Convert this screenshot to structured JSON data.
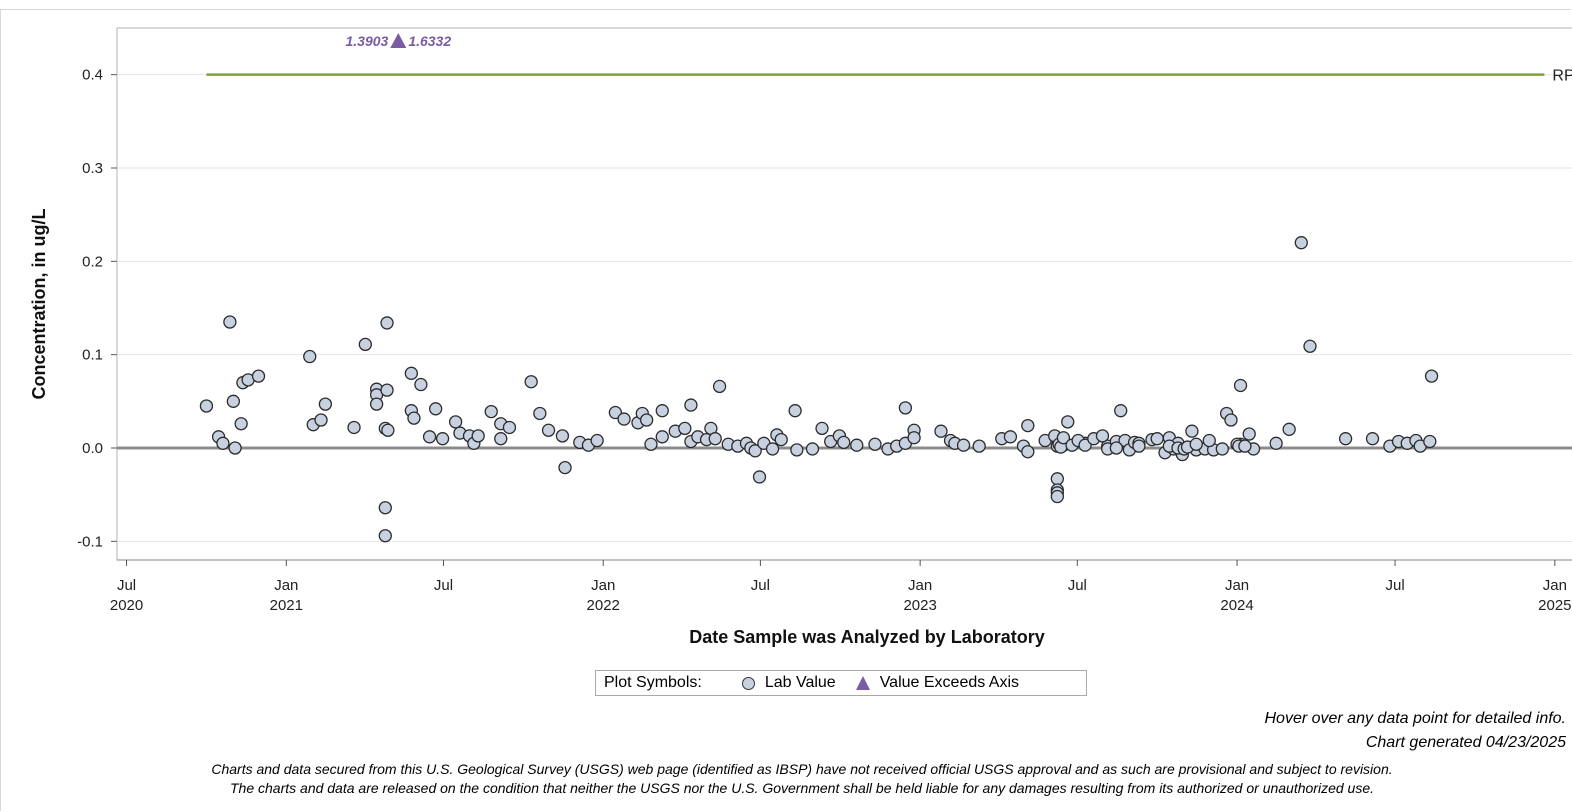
{
  "chart_data": {
    "type": "scatter",
    "title": "",
    "ylabel": "Concentration, in ug/L",
    "xlabel": "Date Sample was Analyzed by Laboratory",
    "ylim": [
      -0.12,
      0.45
    ],
    "xlim": [
      "2020-06-20",
      "2025-01-15"
    ],
    "y_ticks": [
      {
        "value": 0.4,
        "label": "0.4"
      },
      {
        "value": 0.3,
        "label": "0.3"
      },
      {
        "value": 0.2,
        "label": "0.2"
      },
      {
        "value": 0.1,
        "label": "0.1"
      },
      {
        "value": 0.0,
        "label": "0.0"
      },
      {
        "value": -0.1,
        "label": "-0.1"
      }
    ],
    "x_ticks": [
      {
        "date": "2020-07-01",
        "line1": "Jul",
        "line2": "2020"
      },
      {
        "date": "2021-01-01",
        "line1": "Jan",
        "line2": "2021"
      },
      {
        "date": "2021-07-01",
        "line1": "Jul",
        "line2": ""
      },
      {
        "date": "2022-01-01",
        "line1": "Jan",
        "line2": "2022"
      },
      {
        "date": "2022-07-01",
        "line1": "Jul",
        "line2": ""
      },
      {
        "date": "2023-01-01",
        "line1": "Jan",
        "line2": "2023"
      },
      {
        "date": "2023-07-01",
        "line1": "Jul",
        "line2": ""
      },
      {
        "date": "2024-01-01",
        "line1": "Jan",
        "line2": "2024"
      },
      {
        "date": "2024-07-01",
        "line1": "Jul",
        "line2": ""
      },
      {
        "date": "2025-01-01",
        "line1": "Jan",
        "line2": "2025"
      }
    ],
    "grid": "horizontal",
    "reference_lines": [
      {
        "label": "RPT Level",
        "y": 0.4,
        "x_start": "2020-10-01",
        "x_end": "2024-12-20",
        "color": "#7da13c"
      },
      {
        "label": "",
        "y": 0.0,
        "color": "#8c8c8c"
      }
    ],
    "exceeds_axis": [
      {
        "date": "2021-05-10",
        "values": [
          "1.3903",
          "1.6332"
        ],
        "color": "#7a5ca5"
      }
    ],
    "series": [
      {
        "name": "Lab Value",
        "marker": "circle",
        "color": "#c7d1e0",
        "points": [
          [
            "2020-10-01",
            0.045
          ],
          [
            "2020-10-15",
            0.012
          ],
          [
            "2020-10-20",
            0.005
          ],
          [
            "2020-10-28",
            0.135
          ],
          [
            "2020-11-01",
            0.05
          ],
          [
            "2020-11-03",
            0.0
          ],
          [
            "2020-11-10",
            0.026
          ],
          [
            "2020-11-12",
            0.07
          ],
          [
            "2020-11-18",
            0.073
          ],
          [
            "2020-11-30",
            0.077
          ],
          [
            "2021-01-28",
            0.098
          ],
          [
            "2021-02-01",
            0.025
          ],
          [
            "2021-02-10",
            0.03
          ],
          [
            "2021-02-15",
            0.047
          ],
          [
            "2021-03-20",
            0.022
          ],
          [
            "2021-04-02",
            0.111
          ],
          [
            "2021-04-15",
            0.063
          ],
          [
            "2021-04-15",
            0.057
          ],
          [
            "2021-04-15",
            0.047
          ],
          [
            "2021-04-27",
            0.134
          ],
          [
            "2021-04-25",
            0.021
          ],
          [
            "2021-04-27",
            0.062
          ],
          [
            "2021-04-28",
            0.019
          ],
          [
            "2021-04-25",
            -0.064
          ],
          [
            "2021-04-25",
            -0.094
          ],
          [
            "2021-05-25",
            0.08
          ],
          [
            "2021-05-25",
            0.04
          ],
          [
            "2021-05-28",
            0.032
          ],
          [
            "2021-06-05",
            0.068
          ],
          [
            "2021-06-15",
            0.012
          ],
          [
            "2021-06-22",
            0.042
          ],
          [
            "2021-06-30",
            0.01
          ],
          [
            "2021-07-15",
            0.028
          ],
          [
            "2021-07-20",
            0.016
          ],
          [
            "2021-07-31",
            0.013
          ],
          [
            "2021-08-05",
            0.005
          ],
          [
            "2021-08-10",
            0.013
          ],
          [
            "2021-08-25",
            0.039
          ],
          [
            "2021-09-05",
            0.026
          ],
          [
            "2021-09-05",
            0.01
          ],
          [
            "2021-09-15",
            0.022
          ],
          [
            "2021-10-10",
            0.071
          ],
          [
            "2021-10-20",
            0.037
          ],
          [
            "2021-10-30",
            0.019
          ],
          [
            "2021-11-15",
            0.013
          ],
          [
            "2021-11-18",
            -0.021
          ],
          [
            "2021-12-05",
            0.006
          ],
          [
            "2021-12-15",
            0.003
          ],
          [
            "2021-12-25",
            0.008
          ],
          [
            "2022-01-15",
            0.038
          ],
          [
            "2022-01-25",
            0.031
          ],
          [
            "2022-02-10",
            0.027
          ],
          [
            "2022-02-15",
            0.037
          ],
          [
            "2022-02-20",
            0.03
          ],
          [
            "2022-02-25",
            0.004
          ],
          [
            "2022-03-10",
            0.04
          ],
          [
            "2022-03-10",
            0.012
          ],
          [
            "2022-03-25",
            0.018
          ],
          [
            "2022-04-05",
            0.021
          ],
          [
            "2022-04-12",
            0.046
          ],
          [
            "2022-04-12",
            0.007
          ],
          [
            "2022-04-20",
            0.012
          ],
          [
            "2022-04-30",
            0.009
          ],
          [
            "2022-05-05",
            0.021
          ],
          [
            "2022-05-10",
            0.01
          ],
          [
            "2022-05-15",
            0.066
          ],
          [
            "2022-05-25",
            0.004
          ],
          [
            "2022-06-05",
            0.002
          ],
          [
            "2022-06-15",
            0.005
          ],
          [
            "2022-06-20",
            0.0
          ],
          [
            "2022-06-25",
            -0.003
          ],
          [
            "2022-06-30",
            -0.031
          ],
          [
            "2022-07-05",
            0.005
          ],
          [
            "2022-07-15",
            -0.001
          ],
          [
            "2022-07-20",
            0.014
          ],
          [
            "2022-07-25",
            0.009
          ],
          [
            "2022-08-10",
            0.04
          ],
          [
            "2022-08-12",
            -0.002
          ],
          [
            "2022-08-30",
            -0.001
          ],
          [
            "2022-09-10",
            0.021
          ],
          [
            "2022-09-20",
            0.007
          ],
          [
            "2022-09-30",
            0.013
          ],
          [
            "2022-10-05",
            0.006
          ],
          [
            "2022-10-20",
            0.003
          ],
          [
            "2022-11-10",
            0.004
          ],
          [
            "2022-11-25",
            -0.001
          ],
          [
            "2022-12-05",
            0.002
          ],
          [
            "2022-12-15",
            0.005
          ],
          [
            "2022-12-15",
            0.043
          ],
          [
            "2022-12-25",
            0.019
          ],
          [
            "2022-12-25",
            0.011
          ],
          [
            "2023-01-25",
            0.018
          ],
          [
            "2023-02-05",
            0.008
          ],
          [
            "2023-02-10",
            0.005
          ],
          [
            "2023-02-20",
            0.003
          ],
          [
            "2023-03-10",
            0.002
          ],
          [
            "2023-04-05",
            0.01
          ],
          [
            "2023-04-15",
            0.012
          ],
          [
            "2023-04-30",
            0.002
          ],
          [
            "2023-05-05",
            -0.004
          ],
          [
            "2023-05-05",
            0.024
          ],
          [
            "2023-05-25",
            0.008
          ],
          [
            "2023-06-10",
            0.004
          ],
          [
            "2023-06-15",
            0.003
          ],
          [
            "2023-07-10",
            0.005
          ],
          [
            "2023-08-05",
            0.002
          ],
          [
            "2023-08-15",
            0.007
          ],
          [
            "2023-08-20",
            0.04
          ],
          [
            "2023-08-25",
            0.008
          ],
          [
            "2023-08-30",
            -0.002
          ],
          [
            "2023-09-05",
            0.006
          ],
          [
            "2023-09-10",
            0.005
          ],
          [
            "2023-09-25",
            0.009
          ],
          [
            "2023-10-01",
            0.01
          ],
          [
            "2023-10-10",
            -0.005
          ],
          [
            "2023-10-15",
            0.011
          ],
          [
            "2023-10-20",
            -0.001
          ],
          [
            "2023-10-25",
            0.005
          ],
          [
            "2023-10-30",
            -0.007
          ],
          [
            "2023-11-10",
            0.018
          ],
          [
            "2023-11-15",
            -0.002
          ],
          [
            "2023-11-25",
            -0.001
          ],
          [
            "2023-12-05",
            -0.002
          ],
          [
            "2023-12-15",
            -0.001
          ],
          [
            "2024-01-05",
            0.067
          ],
          [
            "2024-01-05",
            0.004
          ],
          [
            "2024-01-15",
            0.015
          ],
          [
            "2024-01-20",
            -0.001
          ],
          [
            "2024-02-15",
            0.005
          ],
          [
            "2024-03-01",
            0.02
          ],
          [
            "2024-03-15",
            0.22
          ],
          [
            "2024-03-25",
            0.109
          ],
          [
            "2024-05-05",
            0.01
          ],
          [
            "2024-06-05",
            0.01
          ],
          [
            "2024-06-25",
            0.002
          ],
          [
            "2024-07-05",
            0.007
          ],
          [
            "2024-07-15",
            0.005
          ],
          [
            "2024-07-25",
            0.008
          ],
          [
            "2024-07-30",
            0.002
          ],
          [
            "2024-08-10",
            0.007
          ],
          [
            "2024-08-12",
            0.077
          ],
          [
            "2023-06-05",
            0.013
          ],
          [
            "2023-06-08",
            0.002
          ],
          [
            "2023-06-10",
            0.004
          ],
          [
            "2023-06-12",
            0.001
          ],
          [
            "2023-06-15",
            0.011
          ],
          [
            "2023-06-20",
            0.028
          ],
          [
            "2023-06-25",
            0.003
          ],
          [
            "2023-07-02",
            0.008
          ],
          [
            "2023-07-10",
            0.003
          ],
          [
            "2023-07-20",
            0.01
          ],
          [
            "2023-07-30",
            0.013
          ],
          [
            "2023-08-05",
            -0.001
          ],
          [
            "2023-08-15",
            0.0
          ],
          [
            "2023-09-10",
            0.002
          ],
          [
            "2023-10-15",
            0.002
          ],
          [
            "2023-10-25",
            0.0
          ],
          [
            "2023-11-01",
            -0.001
          ],
          [
            "2023-11-05",
            0.001
          ],
          [
            "2023-11-15",
            0.004
          ],
          [
            "2023-11-30",
            0.008
          ],
          [
            "2023-12-20",
            0.037
          ],
          [
            "2023-12-25",
            0.03
          ],
          [
            "2024-01-01",
            0.004
          ],
          [
            "2024-01-03",
            0.002
          ],
          [
            "2024-01-10",
            0.002
          ],
          [
            "2023-06-08",
            -0.033
          ],
          [
            "2023-06-08",
            -0.045
          ],
          [
            "2023-06-08",
            -0.048
          ],
          [
            "2023-06-08",
            -0.052
          ]
        ]
      }
    ]
  },
  "legend": {
    "title": "Plot Symbols:",
    "lab_value": "Lab Value",
    "exceeds_axis": "Value Exceeds Axis"
  },
  "notes": {
    "hover": "Hover over any data point for detailed info.",
    "generated": "Chart generated 04/23/2025",
    "disclaimer_1": "Charts and data secured from this U.S. Geological Survey (USGS) web page (identified as IBSP) have not received official USGS approval and as such are provisional and subject to revision.",
    "disclaimer_2": "The charts and data are released on the condition that neither the USGS nor the U.S. Government shall be held liable for any damages resulting from its authorized or unauthorized use."
  },
  "colors": {
    "rpt_line": "#7da13c",
    "zero_line": "#8c8c8c",
    "marker_fill": "#c7d1e0",
    "exceed_marker": "#7a5ca5",
    "grid": "#e6e6e6"
  }
}
